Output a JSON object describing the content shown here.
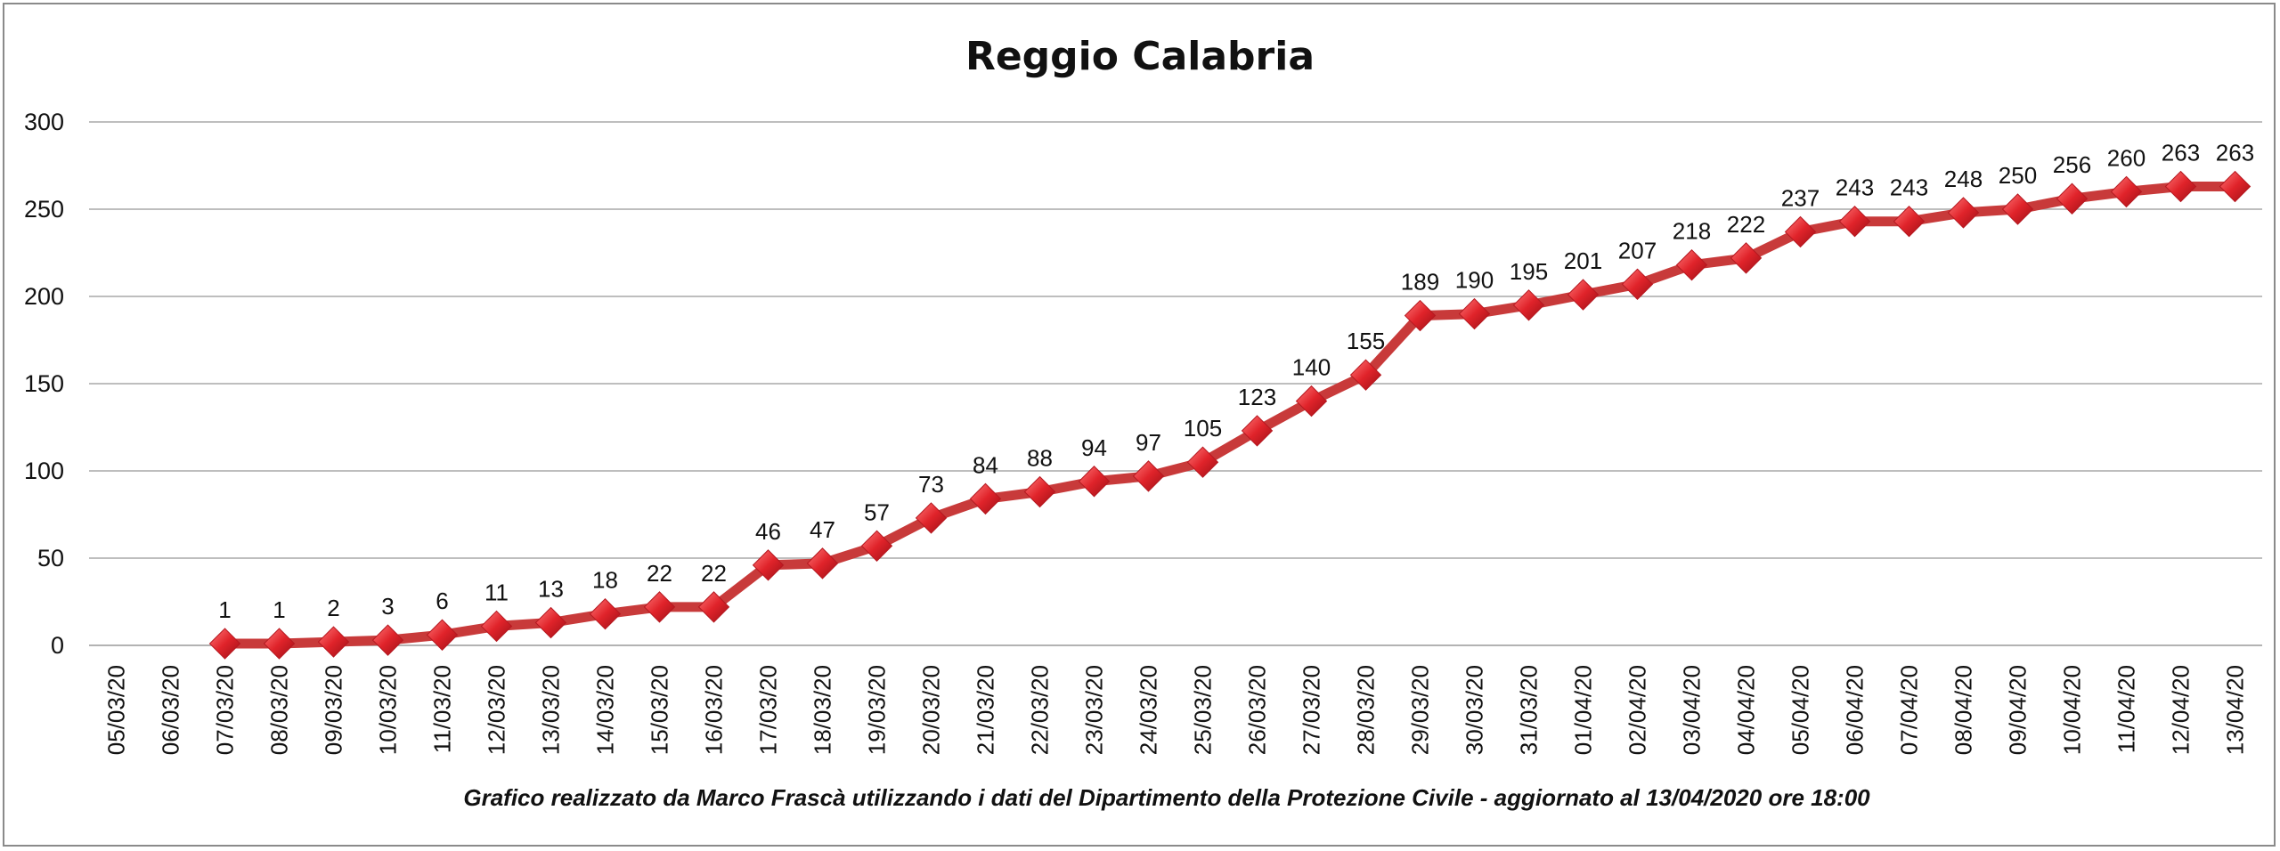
{
  "chart_data": {
    "type": "line",
    "title": "Reggio Calabria",
    "footnote": "Grafico  realizzato da Marco Frascà  utilizzando i dati del Dipartimento  della Protezione Civile - aggiornato al 13/04/2020 ore 18:00",
    "ylim": [
      0,
      300
    ],
    "yticks": [
      "0",
      "50",
      "100",
      "150",
      "200",
      "250",
      "300"
    ],
    "grid": true,
    "categories": [
      "05/03/20",
      "06/03/20",
      "07/03/20",
      "08/03/20",
      "09/03/20",
      "10/03/20",
      "11/03/20",
      "12/03/20",
      "13/03/20",
      "14/03/20",
      "15/03/20",
      "16/03/20",
      "17/03/20",
      "18/03/20",
      "19/03/20",
      "20/03/20",
      "21/03/20",
      "22/03/20",
      "23/03/20",
      "24/03/20",
      "25/03/20",
      "26/03/20",
      "27/03/20",
      "28/03/20",
      "29/03/20",
      "30/03/20",
      "31/03/20",
      "01/04/20",
      "02/04/20",
      "03/04/20",
      "04/04/20",
      "05/04/20",
      "06/04/20",
      "07/04/20",
      "08/04/20",
      "09/04/20",
      "10/04/20",
      "11/04/20",
      "12/04/20",
      "13/04/20"
    ],
    "values": [
      null,
      null,
      1,
      1,
      2,
      3,
      6,
      11,
      13,
      18,
      22,
      22,
      46,
      47,
      57,
      73,
      84,
      88,
      94,
      97,
      105,
      123,
      140,
      155,
      189,
      190,
      195,
      201,
      207,
      218,
      222,
      237,
      243,
      243,
      248,
      250,
      256,
      260,
      263,
      263
    ],
    "line_color": "#c83a3a",
    "marker_color": "#e0232a"
  }
}
